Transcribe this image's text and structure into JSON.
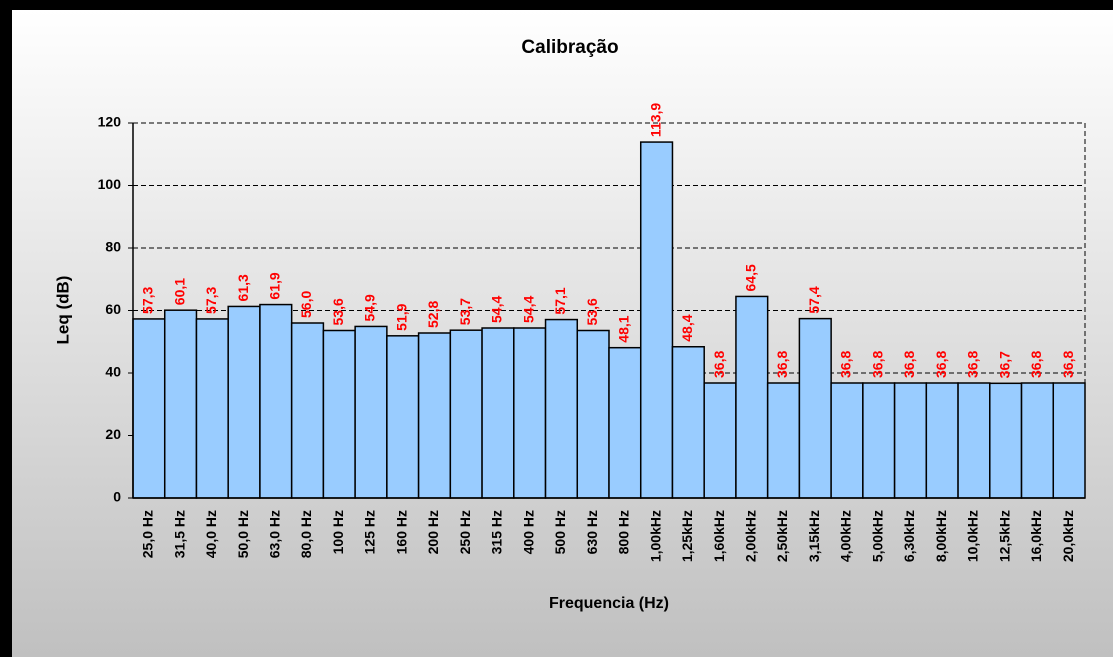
{
  "chart_data": {
    "type": "bar",
    "title": "Calibração",
    "xlabel": "Frequencia (Hz)",
    "ylabel": "Leq (dB)",
    "categories": [
      "25,0 Hz",
      "31,5 Hz",
      "40,0 Hz",
      "50,0 Hz",
      "63,0 Hz",
      "80,0 Hz",
      "100 Hz",
      "125 Hz",
      "160 Hz",
      "200 Hz",
      "250 Hz",
      "315 Hz",
      "400 Hz",
      "500 Hz",
      "630 Hz",
      "800 Hz",
      "1,00kHz",
      "1,25kHz",
      "1,60kHz",
      "2,00kHz",
      "2,50kHz",
      "3,15kHz",
      "4,00kHz",
      "5,00kHz",
      "6,30kHz",
      "8,00kHz",
      "10,0kHz",
      "12,5kHz",
      "16,0kHz",
      "20,0kHz"
    ],
    "values": [
      57.3,
      60.1,
      57.3,
      61.3,
      61.9,
      56.0,
      53.6,
      54.9,
      51.9,
      52.8,
      53.7,
      54.4,
      54.4,
      57.1,
      53.6,
      48.1,
      113.9,
      48.4,
      36.8,
      64.5,
      36.8,
      57.4,
      36.8,
      36.8,
      36.8,
      36.8,
      36.8,
      36.7,
      36.8,
      36.8
    ],
    "value_labels": [
      "57,3",
      "60,1",
      "57,3",
      "61,3",
      "61,9",
      "56,0",
      "53,6",
      "54,9",
      "51,9",
      "52,8",
      "53,7",
      "54,4",
      "54,4",
      "57,1",
      "53,6",
      "48,1",
      "113,9",
      "48,4",
      "36,8",
      "64,5",
      "36,8",
      "57,4",
      "36,8",
      "36,8",
      "36,8",
      "36,8",
      "36,8",
      "36,7",
      "36,8",
      "36,8"
    ],
    "color": "#99ccff",
    "label_color": "#ff0000",
    "ylim": [
      0,
      120
    ],
    "yticks": [
      0,
      20,
      40,
      60,
      80,
      100,
      120
    ],
    "grid": true
  }
}
